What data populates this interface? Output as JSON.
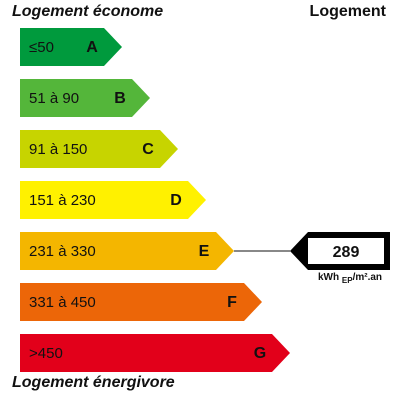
{
  "header": {
    "left_title": "Logement économe",
    "right_title": "Logement"
  },
  "footer": {
    "left_title": "Logement énergivore"
  },
  "indicator": {
    "value": "289",
    "unit_main": "kWh",
    "unit_sub": "EP",
    "unit_tail": "/m².an",
    "class": "E"
  },
  "chart_data": {
    "type": "bar",
    "title": "",
    "categories": [
      "A",
      "B",
      "C",
      "D",
      "E",
      "F",
      "G"
    ],
    "ranges": [
      "≤50",
      "51 à 90",
      "91 à 150",
      "151 à 230",
      "231 à 330",
      "331 à 450",
      ">450"
    ],
    "colors": [
      "#009a3d",
      "#54b63a",
      "#c7d400",
      "#fff100",
      "#f4b600",
      "#ec6608",
      "#e2001a"
    ],
    "range_text_colors": [
      "#111111",
      "#111111",
      "#111111",
      "#111111",
      "#111111",
      "#111111",
      "#ffffff"
    ],
    "letter_colors": [
      "#111111",
      "#111111",
      "#111111",
      "#111111",
      "#ffffff",
      "#ffffff",
      "#ffffff"
    ],
    "highlight_class": "E",
    "highlight_value": 289
  }
}
